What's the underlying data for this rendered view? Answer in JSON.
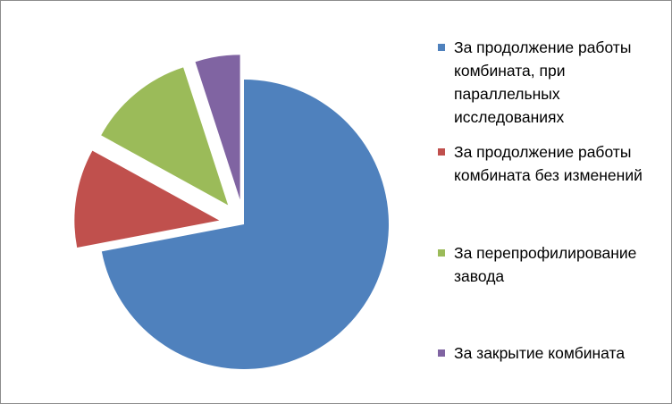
{
  "chart_data": {
    "type": "pie",
    "title": "",
    "categories": [
      "За продолжение работы комбината, при параллельных исследованиях",
      "За продолжение работы комбината без изменений",
      "За перепрофилирование завода",
      "За закрытие комбината"
    ],
    "values": [
      72,
      11,
      12,
      5
    ],
    "colors": [
      "#4F81BD",
      "#C0504D",
      "#9BBB59",
      "#8064A2"
    ],
    "exploded": [
      false,
      true,
      true,
      true
    ],
    "legend_position": "right"
  }
}
